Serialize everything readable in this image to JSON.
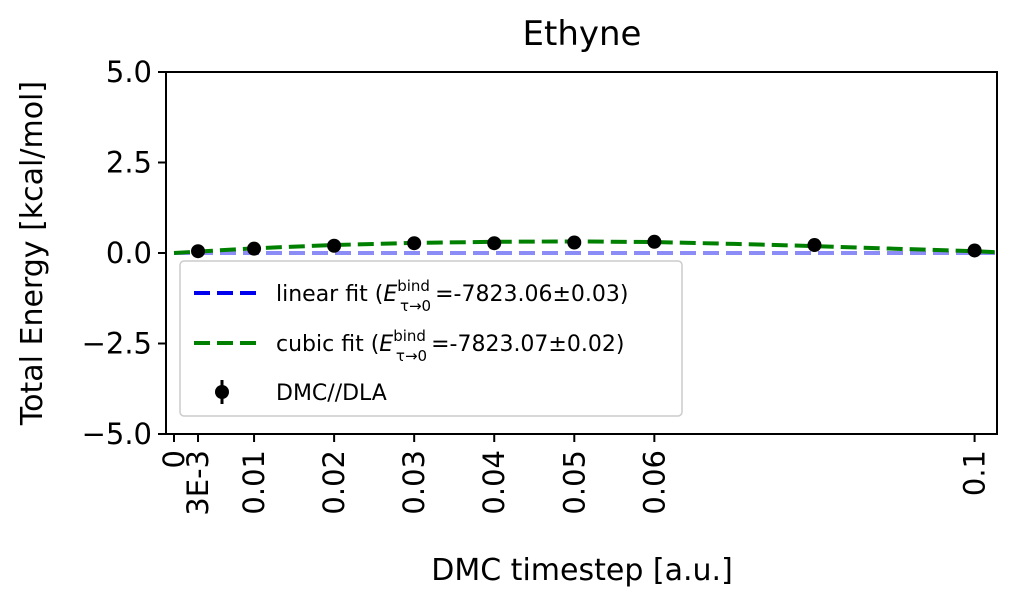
{
  "chart_data": {
    "type": "scatter",
    "title": "Ethyne",
    "xlabel": "DMC timestep [a.u.]",
    "ylabel": "Total Energy [kcal/mol]",
    "xlim": [
      -0.001,
      0.1028
    ],
    "ylim": [
      -5.0,
      5.0
    ],
    "xticks": [
      {
        "value": 0,
        "label": "0"
      },
      {
        "value": 0.003,
        "label": "3E-3"
      },
      {
        "value": 0.01,
        "label": "0.01"
      },
      {
        "value": 0.02,
        "label": "0.02"
      },
      {
        "value": 0.03,
        "label": "0.03"
      },
      {
        "value": 0.04,
        "label": "0.04"
      },
      {
        "value": 0.05,
        "label": "0.05"
      },
      {
        "value": 0.06,
        "label": "0.06"
      },
      {
        "value": 0.1,
        "label": "0.1"
      }
    ],
    "yticks": [
      {
        "value": 5.0,
        "label": "5.0"
      },
      {
        "value": 2.5,
        "label": "2.5"
      },
      {
        "value": 0.0,
        "label": "0.0"
      },
      {
        "value": -2.5,
        "label": "−2.5"
      },
      {
        "value": -5.0,
        "label": "−5.0"
      }
    ],
    "grid": false,
    "legend_position": "lower-left",
    "series": [
      {
        "name": "linear fit",
        "kind": "dashed-line",
        "color": "#0000ee",
        "legend_value": "=-7823.06±0.03)",
        "x": [
          0.0,
          0.1028
        ],
        "y": [
          0.0,
          0.0
        ]
      },
      {
        "name": "cubic fit",
        "kind": "dashed-line",
        "color": "#008000",
        "legend_value": "=-7823.07±0.02)",
        "x": [
          0.0,
          0.01,
          0.02,
          0.03,
          0.04,
          0.05,
          0.06,
          0.07,
          0.08,
          0.09,
          0.1,
          0.1028
        ],
        "y": [
          0.0,
          0.13,
          0.22,
          0.28,
          0.31,
          0.32,
          0.3,
          0.25,
          0.19,
          0.12,
          0.05,
          0.02
        ]
      },
      {
        "name": "DMC//DLA",
        "kind": "points",
        "color": "#000000",
        "x": [
          0.003,
          0.01,
          0.02,
          0.03,
          0.04,
          0.05,
          0.06,
          0.08,
          0.1
        ],
        "y": [
          0.05,
          0.12,
          0.2,
          0.27,
          0.27,
          0.29,
          0.31,
          0.22,
          0.07
        ]
      }
    ],
    "legend_math": {
      "symbol": "E",
      "superscript": "bind",
      "subscript": "τ→0"
    }
  }
}
